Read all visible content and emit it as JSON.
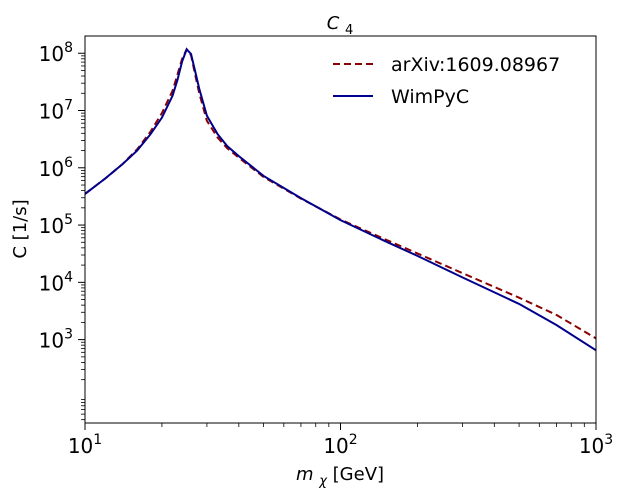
{
  "chart_data": {
    "type": "line",
    "title_main": "C",
    "title_sub": "4",
    "xlabel_var": "m",
    "xlabel_sub": "χ",
    "xlabel_unit": " [GeV]",
    "ylabel": "C [1/s]",
    "xscale": "log",
    "yscale": "log",
    "xlim": [
      10,
      1000
    ],
    "ylim": [
      35,
      200000000
    ],
    "x_ticks": [
      {
        "value": 10,
        "base": "10",
        "exp": "1"
      },
      {
        "value": 100,
        "base": "10",
        "exp": "2"
      },
      {
        "value": 1000,
        "base": "10",
        "exp": "3"
      }
    ],
    "y_ticks": [
      {
        "value": 1000,
        "base": "10",
        "exp": "3"
      },
      {
        "value": 10000,
        "base": "10",
        "exp": "4"
      },
      {
        "value": 100000,
        "base": "10",
        "exp": "5"
      },
      {
        "value": 1000000,
        "base": "10",
        "exp": "6"
      },
      {
        "value": 10000000,
        "base": "10",
        "exp": "7"
      },
      {
        "value": 100000000,
        "base": "10",
        "exp": "8"
      }
    ],
    "legend_position": "top-right",
    "series": [
      {
        "name": "arXiv:1609.08967",
        "color": "#8b0000",
        "style": "dashed",
        "x": [
          10,
          12,
          14,
          16,
          18,
          20,
          22,
          23,
          24,
          25,
          26,
          27,
          28,
          30,
          33,
          36,
          40,
          50,
          70,
          100,
          150,
          200,
          300,
          500,
          700,
          1000
        ],
        "y": [
          350000,
          650000,
          1150000,
          2100000,
          4200000,
          9000000,
          22000000,
          42000000,
          80000000,
          117000000,
          92000000,
          42000000,
          20000000,
          6600000,
          3400000,
          2200000,
          1500000,
          690000,
          290000,
          125000,
          56000,
          32000,
          14500,
          5400,
          2700,
          1050
        ]
      },
      {
        "name": "WimPyC",
        "color": "#00008b",
        "style": "solid",
        "x": [
          10,
          12,
          14,
          16,
          18,
          20,
          22,
          23,
          24,
          25,
          26,
          27,
          28,
          30,
          33,
          36,
          40,
          50,
          70,
          100,
          150,
          200,
          300,
          500,
          700,
          1000
        ],
        "y": [
          350000,
          650000,
          1150000,
          2000000,
          3800000,
          7500000,
          18000000,
          34000000,
          72000000,
          117000000,
          97000000,
          48000000,
          24000000,
          8100000,
          3900000,
          2400000,
          1600000,
          720000,
          295000,
          122000,
          52000,
          29000,
          12200,
          4200,
          1800,
          650
        ]
      }
    ]
  }
}
